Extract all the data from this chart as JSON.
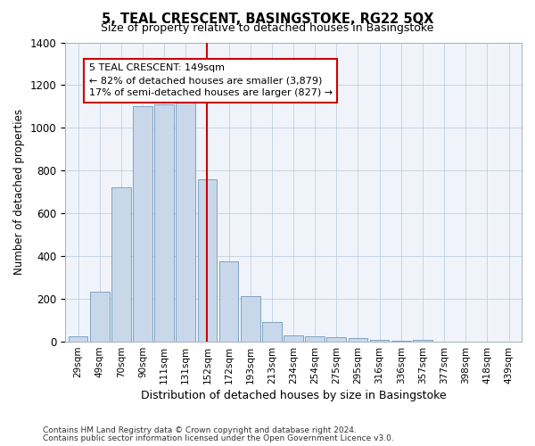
{
  "title": "5, TEAL CRESCENT, BASINGSTOKE, RG22 5QX",
  "subtitle": "Size of property relative to detached houses in Basingstoke",
  "xlabel": "Distribution of detached houses by size in Basingstoke",
  "ylabel": "Number of detached properties",
  "categories": [
    "29sqm",
    "49sqm",
    "70sqm",
    "90sqm",
    "111sqm",
    "131sqm",
    "152sqm",
    "172sqm",
    "193sqm",
    "213sqm",
    "234sqm",
    "254sqm",
    "275sqm",
    "295sqm",
    "316sqm",
    "336sqm",
    "357sqm",
    "377sqm",
    "398sqm",
    "418sqm",
    "439sqm"
  ],
  "values": [
    25,
    235,
    720,
    1100,
    1110,
    1130,
    760,
    375,
    215,
    90,
    30,
    25,
    20,
    15,
    10,
    5,
    10,
    0,
    0,
    0,
    0
  ],
  "bar_color": "#c8d8ea",
  "bar_edge_color": "#7099bb",
  "vline_x": 6.0,
  "vline_color": "#cc0000",
  "annotation_text": "5 TEAL CRESCENT: 149sqm\n← 82% of detached houses are smaller (3,879)\n17% of semi-detached houses are larger (827) →",
  "annotation_box_color": "#ffffff",
  "annotation_box_edge": "#cc0000",
  "ylim": [
    0,
    1400
  ],
  "yticks": [
    0,
    200,
    400,
    600,
    800,
    1000,
    1200,
    1400
  ],
  "footer1": "Contains HM Land Registry data © Crown copyright and database right 2024.",
  "footer2": "Contains public sector information licensed under the Open Government Licence v3.0.",
  "bg_color": "#ffffff",
  "plot_bg_color": "#f0f4fa"
}
